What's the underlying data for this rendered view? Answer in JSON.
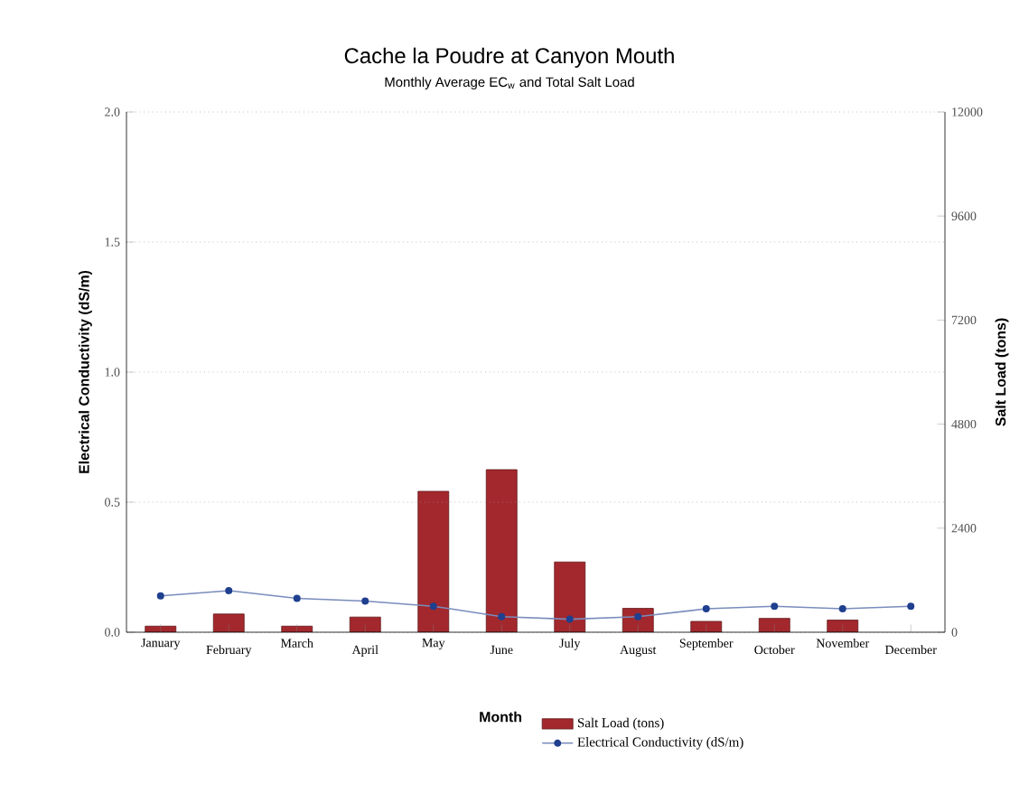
{
  "chart_data": {
    "type": "bar",
    "title": "Cache la Poudre at Canyon Mouth",
    "subtitle": "Monthly Average EC$_{w}$ and Total Salt Load",
    "xlabel": "Month",
    "ylabel": "Electrical Conductivity (dS/m)",
    "y2label": "Salt Load (tons)",
    "categories": [
      "January",
      "February",
      "March",
      "April",
      "May",
      "June",
      "July",
      "August",
      "September",
      "October",
      "November",
      "December"
    ],
    "series": [
      {
        "name": "Salt Load (tons)",
        "axis": "y2",
        "color": "#a3282d",
        "values": [
          140,
          420,
          140,
          350,
          3250,
          3750,
          1620,
          550,
          250,
          320,
          280,
          null
        ]
      },
      {
        "name": "Electrical Conductivity (dS/m)",
        "type": "line",
        "axis": "y",
        "color": "#1f3f8f",
        "values": [
          0.14,
          0.16,
          0.13,
          0.12,
          0.1,
          0.06,
          0.05,
          0.06,
          0.09,
          0.1,
          0.09,
          0.1
        ]
      }
    ],
    "ylim": [
      0,
      2
    ],
    "yticks": [
      {
        "value": 0,
        "label": "0.0"
      },
      {
        "value": 0.5,
        "label": "0.5"
      },
      {
        "value": 1,
        "label": "1.0"
      },
      {
        "value": 1.5,
        "label": "1.5"
      },
      {
        "value": 2,
        "label": "2.0"
      }
    ],
    "y2lim": [
      0,
      12000
    ],
    "y2ticks": [
      0,
      2400,
      4800,
      7200,
      9600,
      12000
    ],
    "grid": "y",
    "legend": "bottom",
    "marker": "circle",
    "line_style": "solid"
  }
}
